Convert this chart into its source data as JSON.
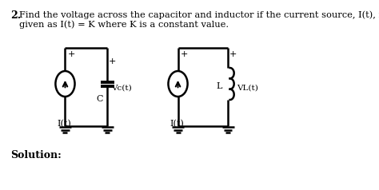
{
  "title_num": "2.",
  "title_text_line1": "Find the voltage across the capacitor and inductor if the current source, I(t), is",
  "title_text_line2": "given as I(t) = K where K is a constant value.",
  "solution_label": "Solution:",
  "bg_color": "#ffffff",
  "text_color": "#000000"
}
